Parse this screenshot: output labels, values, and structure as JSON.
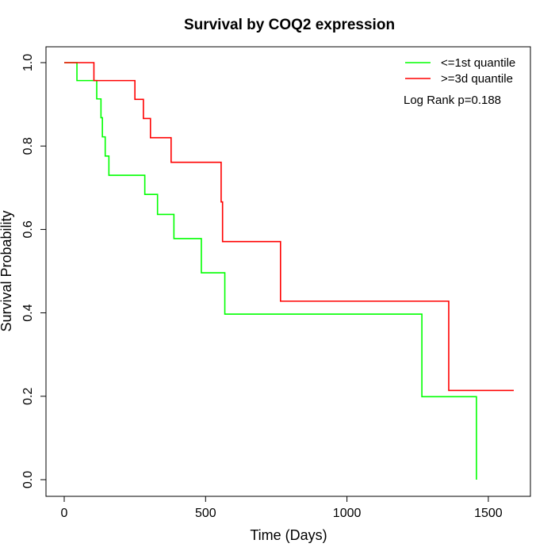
{
  "chart_data": {
    "type": "line",
    "subtype": "kaplan-meier-step",
    "title": "Survival by COQ2 expression",
    "xlabel": "Time (Days)",
    "ylabel": "Survival Probability",
    "xlim": [
      0,
      1590
    ],
    "ylim": [
      0,
      1
    ],
    "x_ticks": [
      0,
      500,
      1000,
      1500
    ],
    "y_ticks": [
      0.0,
      0.2,
      0.4,
      0.6,
      0.8,
      1.0
    ],
    "x_tick_labels": [
      "0",
      "500",
      "1000",
      "1500"
    ],
    "y_tick_labels": [
      "0.0",
      "0.2",
      "0.4",
      "0.6",
      "0.8",
      "1.0"
    ],
    "grid": false,
    "legend_position": "top-right",
    "annotation": "Log Rank p=0.188",
    "series": [
      {
        "name": "<=1st quantile",
        "color": "#00ff00",
        "x": [
          0,
          45,
          115,
          130,
          135,
          145,
          158,
          285,
          330,
          388,
          485,
          568,
          1265,
          1458
        ],
        "y": [
          1.0,
          0.957,
          0.913,
          0.868,
          0.822,
          0.776,
          0.73,
          0.684,
          0.636,
          0.578,
          0.496,
          0.397,
          0.199,
          0.0
        ]
      },
      {
        "name": ">=3d quantile",
        "color": "#ff0000",
        "x": [
          0,
          105,
          250,
          280,
          305,
          378,
          555,
          560,
          765,
          1360,
          1590
        ],
        "y": [
          1.0,
          0.957,
          0.912,
          0.866,
          0.82,
          0.761,
          0.666,
          0.571,
          0.428,
          0.214,
          0.214
        ]
      }
    ]
  }
}
